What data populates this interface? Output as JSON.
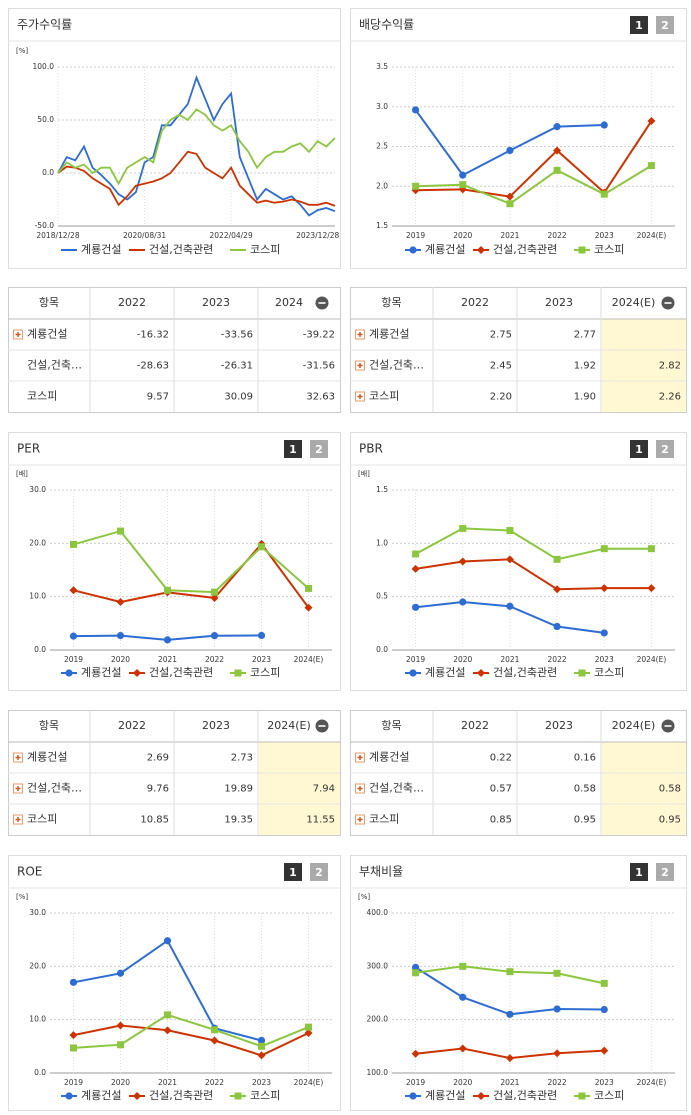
{
  "chart_data": [
    {
      "type": "line",
      "title": "주가수익률",
      "unit": "[%]",
      "grid": true,
      "markers": false,
      "categories": [
        "2018/12/28",
        null,
        null,
        null,
        null,
        null,
        null,
        null,
        null,
        null,
        "2020/08/31",
        null,
        null,
        null,
        null,
        null,
        null,
        null,
        null,
        null,
        "2022/04/29",
        null,
        null,
        null,
        null,
        null,
        null,
        null,
        null,
        null,
        "2023/12/28",
        null,
        null
      ],
      "ylim": [
        -50,
        100
      ],
      "yticks": [
        {
          "value": -50,
          "label": "-50.0"
        },
        {
          "value": 0,
          "label": "0.0"
        },
        {
          "value": 50,
          "label": "50.0"
        },
        {
          "value": 100,
          "label": "100.0"
        }
      ],
      "series": [
        {
          "name": "계룡건설",
          "color": "#2d6cd2",
          "values": [
            0,
            15,
            12,
            25,
            5,
            -2,
            -10,
            -20,
            -25,
            -18,
            10,
            15,
            45,
            45,
            55,
            65,
            90,
            70,
            50,
            65,
            75,
            15,
            -5,
            -25,
            -15,
            -20,
            -25,
            -22,
            -30,
            -40,
            -35,
            -33,
            -36
          ]
        },
        {
          "name": "건설,건축관련",
          "color": "#cc3300",
          "values": [
            0,
            6,
            5,
            2,
            -5,
            -10,
            -15,
            -30,
            -22,
            -12,
            -10,
            -8,
            -5,
            0,
            10,
            20,
            18,
            5,
            0,
            -5,
            5,
            -12,
            -20,
            -28,
            -26,
            -28,
            -27,
            -25,
            -27,
            -30,
            -30,
            -28,
            -31
          ]
        },
        {
          "name": "코스피",
          "color": "#8cc63f",
          "values": [
            0,
            10,
            5,
            8,
            0,
            5,
            5,
            -10,
            5,
            10,
            15,
            10,
            40,
            50,
            55,
            50,
            60,
            55,
            45,
            40,
            45,
            30,
            20,
            5,
            15,
            20,
            20,
            25,
            28,
            20,
            30,
            25,
            33
          ]
        }
      ]
    },
    {
      "type": "line",
      "title": "배당수익률",
      "buttons": [
        "1",
        "2"
      ],
      "grid": true,
      "markers": true,
      "categories": [
        "2019",
        "2020",
        "2021",
        "2022",
        "2023",
        "2024(E)"
      ],
      "ylim": [
        1.5,
        3.5
      ],
      "yticks": [
        1.5,
        {
          "value": 2,
          "label": "2.0"
        },
        2.5,
        {
          "value": 3,
          "label": "3.0"
        },
        3.5
      ],
      "series": [
        {
          "name": "계룡건설",
          "color": "#2d6cd2",
          "values": [
            2.96,
            2.14,
            2.45,
            2.75,
            2.77,
            null
          ]
        },
        {
          "name": "건설,건축관련",
          "color": "#cc3300",
          "values": [
            1.95,
            1.96,
            1.87,
            2.45,
            1.92,
            2.82
          ]
        },
        {
          "name": "코스피",
          "color": "#8cc63f",
          "values": [
            2.0,
            2.02,
            1.78,
            2.2,
            1.9,
            2.26
          ]
        }
      ]
    },
    {
      "type": "line",
      "title": "PER",
      "unit": "[배]",
      "buttons": [
        "1",
        "2"
      ],
      "grid": true,
      "markers": true,
      "categories": [
        "2019",
        "2020",
        "2021",
        "2022",
        "2023",
        "2024(E)"
      ],
      "ylim": [
        0,
        30
      ],
      "yticks": [
        {
          "value": 0,
          "label": "0.0"
        },
        {
          "value": 10,
          "label": "10.0"
        },
        {
          "value": 20,
          "label": "20.0"
        },
        {
          "value": 30,
          "label": "30.0"
        }
      ],
      "series": [
        {
          "name": "계룡건설",
          "color": "#2d6cd2",
          "values": [
            2.6,
            2.7,
            1.9,
            2.69,
            2.73,
            null
          ]
        },
        {
          "name": "건설,건축관련",
          "color": "#cc3300",
          "values": [
            11.2,
            9.0,
            10.8,
            9.76,
            19.89,
            7.94
          ]
        },
        {
          "name": "코스피",
          "color": "#8cc63f",
          "values": [
            19.8,
            22.3,
            11.2,
            10.85,
            19.35,
            11.55
          ]
        }
      ]
    },
    {
      "type": "line",
      "title": "PBR",
      "unit": "[배]",
      "buttons": [
        "1",
        "2"
      ],
      "grid": true,
      "markers": true,
      "categories": [
        "2019",
        "2020",
        "2021",
        "2022",
        "2023",
        "2024(E)"
      ],
      "ylim": [
        0,
        1.5
      ],
      "yticks": [
        {
          "value": 0,
          "label": "0.0"
        },
        0.5,
        {
          "value": 1,
          "label": "1.0"
        },
        1.5
      ],
      "series": [
        {
          "name": "계룡건설",
          "color": "#2d6cd2",
          "values": [
            0.4,
            0.45,
            0.41,
            0.22,
            0.16,
            null
          ]
        },
        {
          "name": "건설,건축관련",
          "color": "#cc3300",
          "values": [
            0.76,
            0.83,
            0.85,
            0.57,
            0.58,
            0.58
          ]
        },
        {
          "name": "코스피",
          "color": "#8cc63f",
          "values": [
            0.9,
            1.14,
            1.12,
            0.85,
            0.95,
            0.95
          ]
        }
      ]
    },
    {
      "type": "line",
      "title": "ROE",
      "unit": "[%]",
      "buttons": [
        "1",
        "2"
      ],
      "grid": true,
      "markers": true,
      "categories": [
        "2019",
        "2020",
        "2021",
        "2022",
        "2023",
        "2024(E)"
      ],
      "ylim": [
        0,
        30
      ],
      "yticks": [
        {
          "value": 0,
          "label": "0.0"
        },
        {
          "value": 10,
          "label": "10.0"
        },
        {
          "value": 20,
          "label": "20.0"
        },
        {
          "value": 30,
          "label": "30.0"
        }
      ],
      "series": [
        {
          "name": "계룡건설",
          "color": "#2d6cd2",
          "values": [
            17.0,
            18.7,
            24.8,
            8.4,
            6.1,
            null
          ]
        },
        {
          "name": "건설,건축관련",
          "color": "#cc3300",
          "values": [
            7.1,
            8.9,
            8.0,
            6.1,
            3.3,
            7.5
          ]
        },
        {
          "name": "코스피",
          "color": "#8cc63f",
          "values": [
            4.7,
            5.3,
            10.9,
            8.1,
            5.0,
            8.6
          ]
        }
      ]
    },
    {
      "type": "line",
      "title": "부채비율",
      "unit": "[%]",
      "buttons": [
        "1",
        "2"
      ],
      "grid": true,
      "markers": true,
      "categories": [
        "2019",
        "2020",
        "2021",
        "2022",
        "2023",
        "2024(E)"
      ],
      "ylim": [
        100,
        400
      ],
      "yticks": [
        {
          "value": 100,
          "label": "100.0"
        },
        {
          "value": 200,
          "label": "200.0"
        },
        {
          "value": 300,
          "label": "300.0"
        },
        {
          "value": 400,
          "label": "400.0"
        }
      ],
      "series": [
        {
          "name": "계룡건설",
          "color": "#2d6cd2",
          "values": [
            298,
            242,
            210,
            220,
            219,
            null
          ]
        },
        {
          "name": "건설,건축관련",
          "color": "#cc3300",
          "values": [
            136,
            146,
            128,
            137,
            142,
            null
          ]
        },
        {
          "name": "코스피",
          "color": "#8cc63f",
          "values": [
            288,
            300,
            290,
            287,
            268,
            null
          ]
        }
      ]
    }
  ],
  "tables": [
    {
      "header": [
        "항목",
        "2022",
        "2023",
        "2024"
      ],
      "highlight_last": false,
      "rows": [
        {
          "expandable": true,
          "cells": [
            "계룡건설",
            "-16.32",
            "-33.56",
            "-39.22"
          ]
        },
        {
          "expandable": false,
          "cells": [
            "건설,건축…",
            "-28.63",
            "-26.31",
            "-31.56"
          ]
        },
        {
          "expandable": false,
          "cells": [
            "코스피",
            "9.57",
            "30.09",
            "32.63"
          ]
        }
      ]
    },
    {
      "header": [
        "항목",
        "2022",
        "2023",
        "2024(E)"
      ],
      "highlight_last": true,
      "rows": [
        {
          "expandable": true,
          "cells": [
            "계룡건설",
            "2.75",
            "2.77",
            null
          ]
        },
        {
          "expandable": true,
          "cells": [
            "건설,건축…",
            "2.45",
            "1.92",
            "2.82"
          ]
        },
        {
          "expandable": true,
          "cells": [
            "코스피",
            "2.20",
            "1.90",
            "2.26"
          ]
        }
      ]
    },
    {
      "header": [
        "항목",
        "2022",
        "2023",
        "2024(E)"
      ],
      "highlight_last": true,
      "rows": [
        {
          "expandable": true,
          "cells": [
            "계룡건설",
            "2.69",
            "2.73",
            null
          ]
        },
        {
          "expandable": true,
          "cells": [
            "건설,건축…",
            "9.76",
            "19.89",
            "7.94"
          ]
        },
        {
          "expandable": true,
          "cells": [
            "코스피",
            "10.85",
            "19.35",
            "11.55"
          ]
        }
      ]
    },
    {
      "header": [
        "항목",
        "2022",
        "2023",
        "2024(E)"
      ],
      "highlight_last": true,
      "rows": [
        {
          "expandable": true,
          "cells": [
            "계룡건설",
            "0.22",
            "0.16",
            null
          ]
        },
        {
          "expandable": true,
          "cells": [
            "건설,건축…",
            "0.57",
            "0.58",
            "0.58"
          ]
        },
        {
          "expandable": true,
          "cells": [
            "코스피",
            "0.85",
            "0.95",
            "0.95"
          ]
        }
      ]
    }
  ]
}
